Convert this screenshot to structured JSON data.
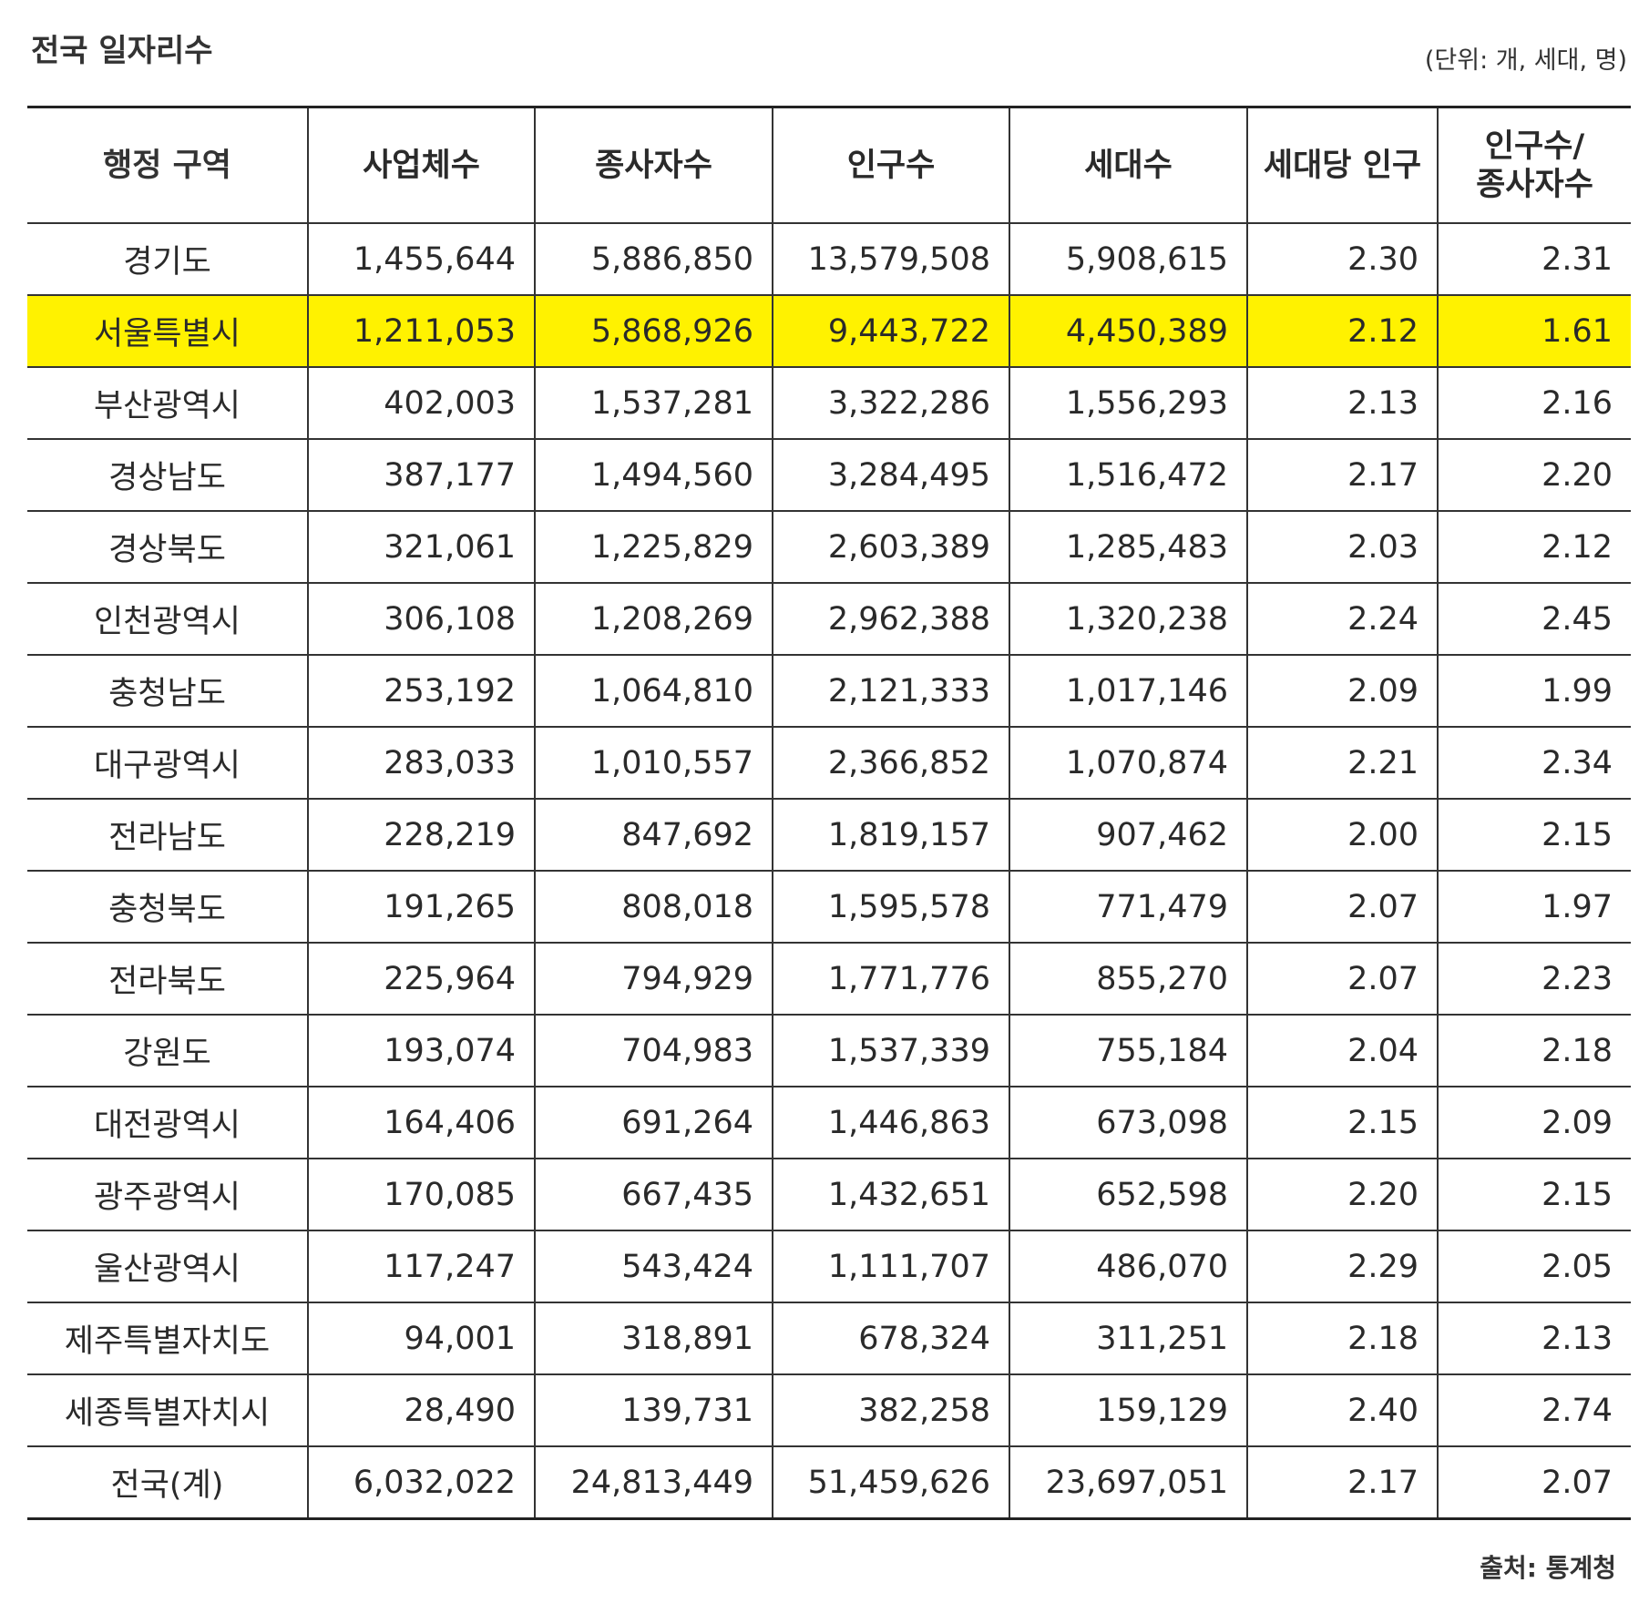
{
  "header": {
    "title": "전국 일자리수",
    "unit": "(단위: 개, 세대, 명)"
  },
  "table": {
    "columns": [
      "행정 구역",
      "사업체수",
      "종사자수",
      "인구수",
      "세대수",
      "세대당 인구",
      "인구수/\n종사자수"
    ],
    "rows": [
      [
        "경기도",
        "1,455,644",
        "5,886,850",
        "13,579,508",
        "5,908,615",
        "2.30",
        "2.31"
      ],
      [
        "서울특별시",
        "1,211,053",
        "5,868,926",
        "9,443,722",
        "4,450,389",
        "2.12",
        "1.61"
      ],
      [
        "부산광역시",
        "402,003",
        "1,537,281",
        "3,322,286",
        "1,556,293",
        "2.13",
        "2.16"
      ],
      [
        "경상남도",
        "387,177",
        "1,494,560",
        "3,284,495",
        "1,516,472",
        "2.17",
        "2.20"
      ],
      [
        "경상북도",
        "321,061",
        "1,225,829",
        "2,603,389",
        "1,285,483",
        "2.03",
        "2.12"
      ],
      [
        "인천광역시",
        "306,108",
        "1,208,269",
        "2,962,388",
        "1,320,238",
        "2.24",
        "2.45"
      ],
      [
        "충청남도",
        "253,192",
        "1,064,810",
        "2,121,333",
        "1,017,146",
        "2.09",
        "1.99"
      ],
      [
        "대구광역시",
        "283,033",
        "1,010,557",
        "2,366,852",
        "1,070,874",
        "2.21",
        "2.34"
      ],
      [
        "전라남도",
        "228,219",
        "847,692",
        "1,819,157",
        "907,462",
        "2.00",
        "2.15"
      ],
      [
        "충청북도",
        "191,265",
        "808,018",
        "1,595,578",
        "771,479",
        "2.07",
        "1.97"
      ],
      [
        "전라북도",
        "225,964",
        "794,929",
        "1,771,776",
        "855,270",
        "2.07",
        "2.23"
      ],
      [
        "강원도",
        "193,074",
        "704,983",
        "1,537,339",
        "755,184",
        "2.04",
        "2.18"
      ],
      [
        "대전광역시",
        "164,406",
        "691,264",
        "1,446,863",
        "673,098",
        "2.15",
        "2.09"
      ],
      [
        "광주광역시",
        "170,085",
        "667,435",
        "1,432,651",
        "652,598",
        "2.20",
        "2.15"
      ],
      [
        "울산광역시",
        "117,247",
        "543,424",
        "1,111,707",
        "486,070",
        "2.29",
        "2.05"
      ],
      [
        "제주특별자치도",
        "94,001",
        "318,891",
        "678,324",
        "311,251",
        "2.18",
        "2.13"
      ],
      [
        "세종특별자치시",
        "28,490",
        "139,731",
        "382,258",
        "159,129",
        "2.40",
        "2.74"
      ],
      [
        "전국(계)",
        "6,032,022",
        "24,813,449",
        "51,459,626",
        "23,697,051",
        "2.17",
        "2.07"
      ]
    ]
  },
  "footer": {
    "source": "출처: 통계청"
  }
}
